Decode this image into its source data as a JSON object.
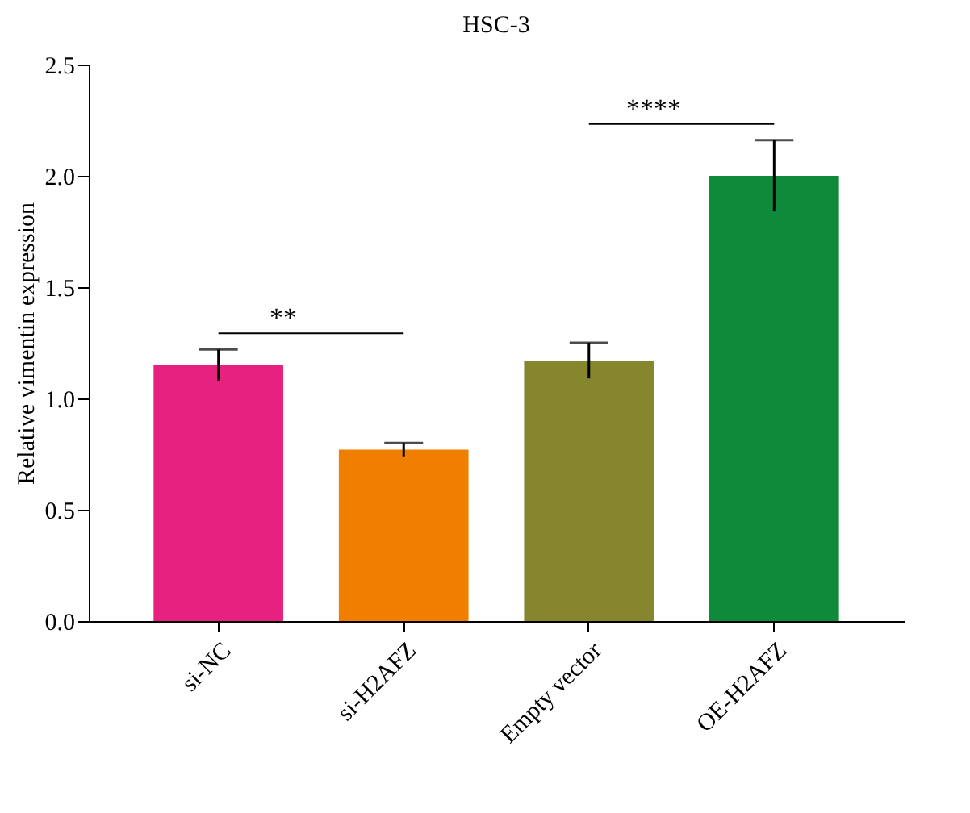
{
  "chart_data": {
    "type": "bar",
    "title": "HSC-3",
    "ylabel": "Relative vimentin expression",
    "categories": [
      "si-NC",
      "si-H2AFZ",
      "Empty vector",
      "OE-H2AFZ"
    ],
    "values": [
      1.15,
      0.77,
      1.17,
      2.0
    ],
    "colors": [
      "#e6217f",
      "#f07f00",
      "#86862f",
      "#0f8a3b"
    ],
    "errors": [
      0.07,
      0.03,
      0.08,
      0.16
    ],
    "ylim": [
      0,
      2.5
    ],
    "yticks": [
      {
        "value": 0,
        "label": "0.0"
      },
      0.5,
      {
        "value": 1,
        "label": "1.0"
      },
      1.5,
      {
        "value": 2,
        "label": "2.0"
      },
      2.5
    ],
    "annotations": [
      "**",
      "****"
    ]
  }
}
